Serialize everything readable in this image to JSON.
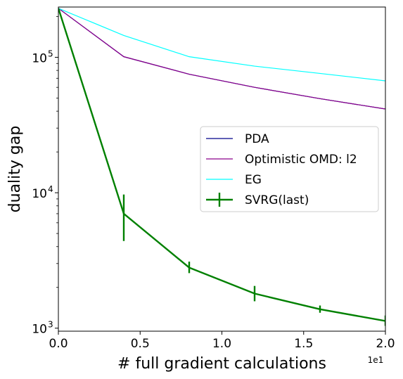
{
  "chart_data": {
    "type": "line",
    "title": "",
    "xlabel": "# full gradient calculations",
    "ylabel": "duality gap",
    "x_offset_label": "1e1",
    "x_scale_note": "x tick values are shown in units of 1e1",
    "xlim": [
      0.0,
      2.0
    ],
    "y_scale": "log",
    "ylim": [
      950,
      235000
    ],
    "x_ticks": [
      0.0,
      0.5,
      1.0,
      1.5,
      2.0
    ],
    "x_tick_labels": [
      "0.0",
      "0.5",
      "1.0",
      "1.5",
      "2.0"
    ],
    "y_ticks": [
      1000,
      10000,
      100000
    ],
    "y_tick_labels": [
      "10",
      "10",
      "10"
    ],
    "y_tick_exponents": [
      "3",
      "4",
      "5"
    ],
    "grid": false,
    "legend_position": "center-right",
    "series": [
      {
        "name": "PDA",
        "color": "#00008b",
        "x": [
          0.0,
          0.4,
          0.8,
          1.2,
          1.6,
          2.0
        ],
        "y": [
          230000,
          101000,
          75000,
          60000,
          49500,
          41500
        ],
        "marker": "none",
        "width": 1.2
      },
      {
        "name": "Optimistic OMD: l2",
        "color": "#8b008b",
        "x": [
          0.0,
          0.4,
          0.8,
          1.2,
          1.6,
          2.0
        ],
        "y": [
          230000,
          101000,
          75000,
          60000,
          49500,
          41500
        ],
        "marker": "none",
        "width": 1.2
      },
      {
        "name": "EG",
        "color": "#00ffff",
        "x": [
          0.0,
          0.4,
          0.8,
          1.2,
          1.6,
          2.0
        ],
        "y": [
          230000,
          145000,
          101000,
          86000,
          76000,
          67000
        ],
        "marker": "none",
        "width": 1.2
      },
      {
        "name": "SVRG(last)",
        "color": "#008000",
        "x": [
          0.0,
          0.4,
          0.8,
          1.2,
          1.6,
          2.0
        ],
        "y": [
          230000,
          7000,
          2800,
          1800,
          1380,
          1130
        ],
        "y_err_low": [
          230000,
          4400,
          2550,
          1580,
          1300,
          1040
        ],
        "y_err_high": [
          230000,
          9700,
          3100,
          2050,
          1470,
          1240
        ],
        "marker": "errorbar",
        "width": 2.4
      }
    ]
  }
}
